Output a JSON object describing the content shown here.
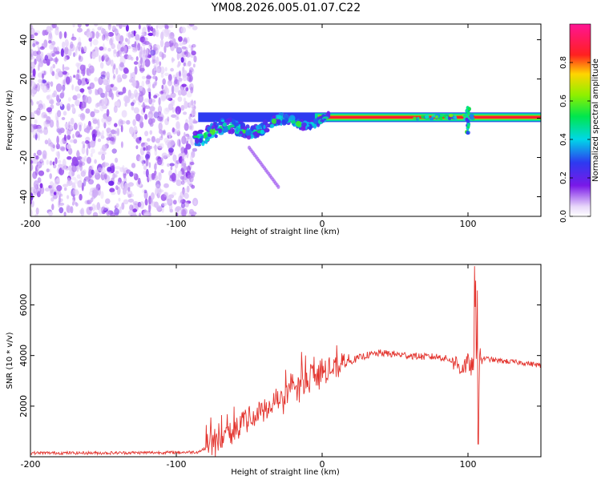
{
  "chart_data": [
    {
      "type": "heatmap",
      "title": "YM08.2026.005.01.07.C22",
      "xlabel": "Height of straight line (km)",
      "ylabel": "Frequency (Hz)",
      "xlim": [
        -200,
        150
      ],
      "ylim": [
        -50,
        48
      ],
      "xticks": [
        -200,
        -100,
        0,
        100
      ],
      "yticks": [
        -40,
        -20,
        0,
        20,
        40
      ],
      "colorbar": {
        "label": "Normalized spectral amplitude",
        "range": [
          0,
          1
        ],
        "ticks": [
          "0.0",
          "0.2",
          "0.4",
          "0.6",
          "0.8"
        ]
      },
      "regions": [
        {
          "name": "broadband noise",
          "x_range": [
            -200,
            -87
          ],
          "y_range": [
            -50,
            48
          ],
          "amplitude": 0.15
        },
        {
          "name": "transition scatter",
          "x_range": [
            -87,
            5
          ],
          "freq_center": [
            -8,
            0
          ],
          "amplitude": 0.5
        },
        {
          "name": "steady tone",
          "x_range": [
            0,
            150
          ],
          "frequency": 0.5,
          "amplitude": 1.0
        },
        {
          "name": "artifact burst",
          "x": 100,
          "y_range": [
            -8,
            6
          ],
          "amplitude": 0.5
        },
        {
          "name": "descending streak",
          "x_range": [
            -50,
            -30
          ],
          "y_range": [
            -35,
            -15
          ],
          "amplitude": 0.15
        }
      ]
    },
    {
      "type": "line",
      "xlabel": "Height of straight line (km)",
      "ylabel": "SNR (10 * v/v)",
      "xlim": [
        -200,
        150
      ],
      "ylim": [
        0,
        7600
      ],
      "xticks": [
        -200,
        -100,
        0,
        100
      ],
      "yticks": [
        2000,
        4000,
        6000
      ],
      "color": "#e3352f",
      "series": [
        {
          "name": "SNR",
          "x": [
            -200,
            -150,
            -100,
            -85,
            -78,
            -70,
            -60,
            -50,
            -40,
            -30,
            -20,
            -10,
            0,
            10,
            20,
            30,
            40,
            50,
            60,
            70,
            80,
            90,
            95,
            100,
            105,
            106,
            107,
            108,
            110,
            120,
            130,
            140,
            150
          ],
          "y": [
            150,
            150,
            170,
            190,
            400,
            800,
            1200,
            1500,
            1800,
            2200,
            2700,
            3100,
            3300,
            3500,
            3800,
            4000,
            4100,
            4050,
            4000,
            3950,
            3950,
            3800,
            3500,
            3700,
            3400,
            7600,
            500,
            3900,
            3900,
            3800,
            3750,
            3700,
            3600
          ]
        }
      ]
    }
  ]
}
